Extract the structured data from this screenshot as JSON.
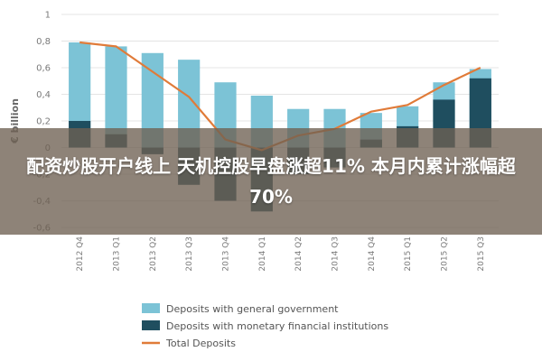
{
  "headline": "配资炒股开户线上 天机控股早盘涨超11% 本月内累计涨幅超70%",
  "colors": {
    "general_government": "#7cc3d6",
    "monetary_institutions": "#1f4e5f",
    "total_line": "#e07b39",
    "overlay": "#6e6052"
  },
  "chart_data": {
    "type": "bar",
    "ylabel": "€ billion",
    "ylim": [
      -0.6,
      1
    ],
    "yticks": [
      "1",
      "0,8",
      "0,6",
      "0,4",
      "0,2",
      "0",
      "-0,2",
      "-0,4",
      "-0,6"
    ],
    "ytick_values": [
      1,
      0.8,
      0.6,
      0.4,
      0.2,
      0,
      -0.2,
      -0.4,
      -0.6
    ],
    "categories": [
      "2012 Q4",
      "2013 Q1",
      "2013 Q2",
      "2013 Q3",
      "2013 Q4",
      "2014 Q1",
      "2014 Q2",
      "2014 Q3",
      "2014 Q4",
      "2015 Q1",
      "2015 Q2",
      "2015 Q3"
    ],
    "series": [
      {
        "name": "Deposits with general government",
        "kind": "bar",
        "color": "#7cc3d6",
        "values": [
          0.79,
          0.76,
          0.71,
          0.66,
          0.49,
          0.39,
          0.29,
          0.29,
          0.26,
          0.31,
          0.49,
          0.59
        ]
      },
      {
        "name": "Deposits with monetary financial institutions",
        "kind": "bar",
        "color": "#1f4e5f",
        "values": [
          0.2,
          0.1,
          -0.05,
          -0.28,
          -0.4,
          -0.48,
          -0.2,
          -0.15,
          0.06,
          0.16,
          0.36,
          0.52
        ]
      },
      {
        "name": "Total Deposits",
        "kind": "line",
        "color": "#e07b39",
        "values": [
          0.79,
          0.76,
          0.57,
          0.38,
          0.06,
          -0.02,
          0.09,
          0.14,
          0.27,
          0.32,
          0.47,
          0.6
        ]
      }
    ],
    "legend_placement": "bottom",
    "legend": [
      "Deposits with general government",
      "Deposits with monetary financial institutions",
      "Total Deposits"
    ],
    "grid": true
  }
}
